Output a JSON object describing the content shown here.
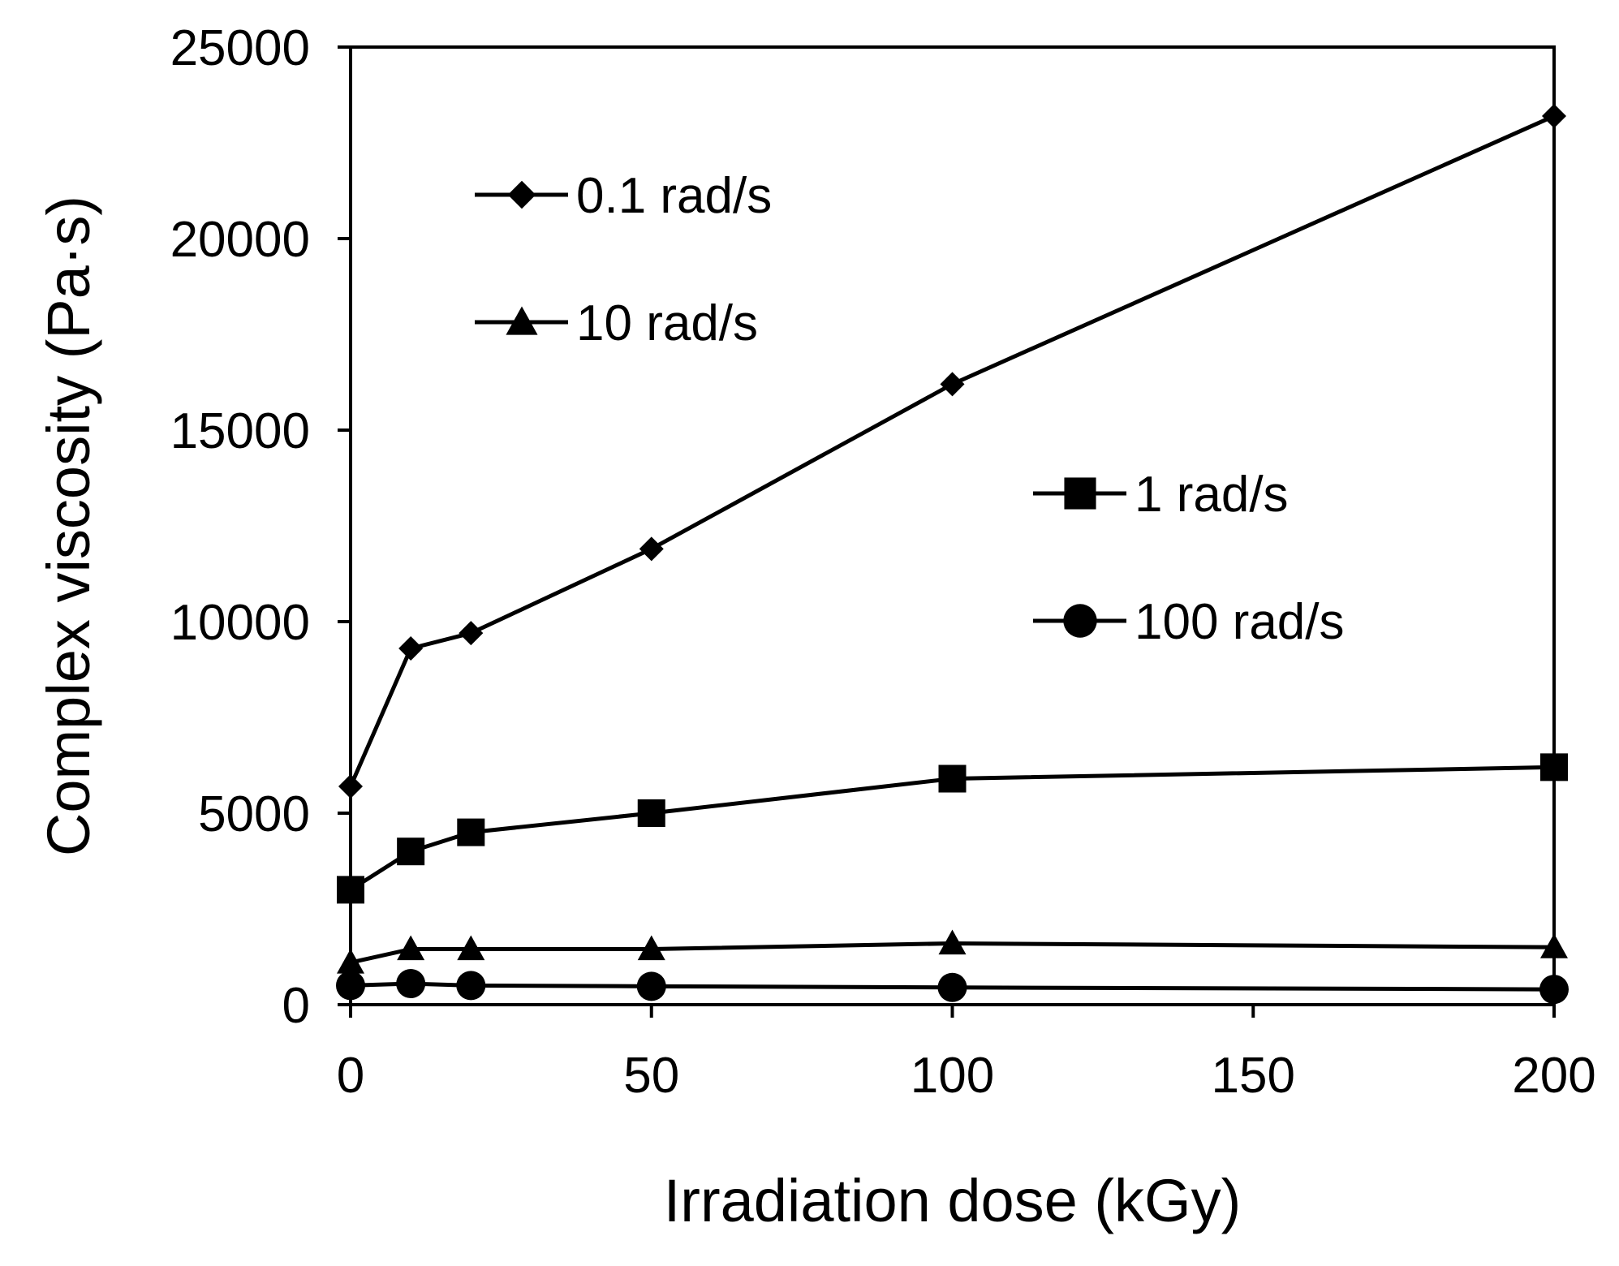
{
  "chart_data": {
    "type": "line",
    "title": "",
    "xlabel": "Irradiation dose (kGy)",
    "ylabel": "Complex viscosity (Pa·s)",
    "xlim": [
      0,
      200
    ],
    "ylim": [
      0,
      25000
    ],
    "x_ticks": [
      0,
      50,
      100,
      150,
      200
    ],
    "y_ticks": [
      0,
      5000,
      10000,
      15000,
      20000,
      25000
    ],
    "grid": false,
    "x": [
      0,
      10,
      20,
      50,
      100,
      200
    ],
    "series": [
      {
        "name": "0.1 rad/s",
        "marker": "diamond",
        "values": [
          5700,
          9300,
          9700,
          11900,
          16200,
          23200
        ]
      },
      {
        "name": "1 rad/s",
        "marker": "square",
        "values": [
          3000,
          4000,
          4500,
          5000,
          5900,
          6200
        ]
      },
      {
        "name": "10 rad/s",
        "marker": "triangle",
        "values": [
          1100,
          1450,
          1450,
          1450,
          1600,
          1500
        ]
      },
      {
        "name": "100 rad/s",
        "marker": "circle",
        "values": [
          500,
          550,
          500,
          480,
          450,
          400
        ]
      }
    ],
    "legend": [
      {
        "series": "0.1 rad/s",
        "placement": "top-left"
      },
      {
        "series": "10 rad/s",
        "placement": "top-left"
      },
      {
        "series": "1 rad/s",
        "placement": "center-right"
      },
      {
        "series": "100 rad/s",
        "placement": "center-right"
      }
    ],
    "colors": {
      "line": "#000000",
      "background": "#ffffff"
    }
  }
}
